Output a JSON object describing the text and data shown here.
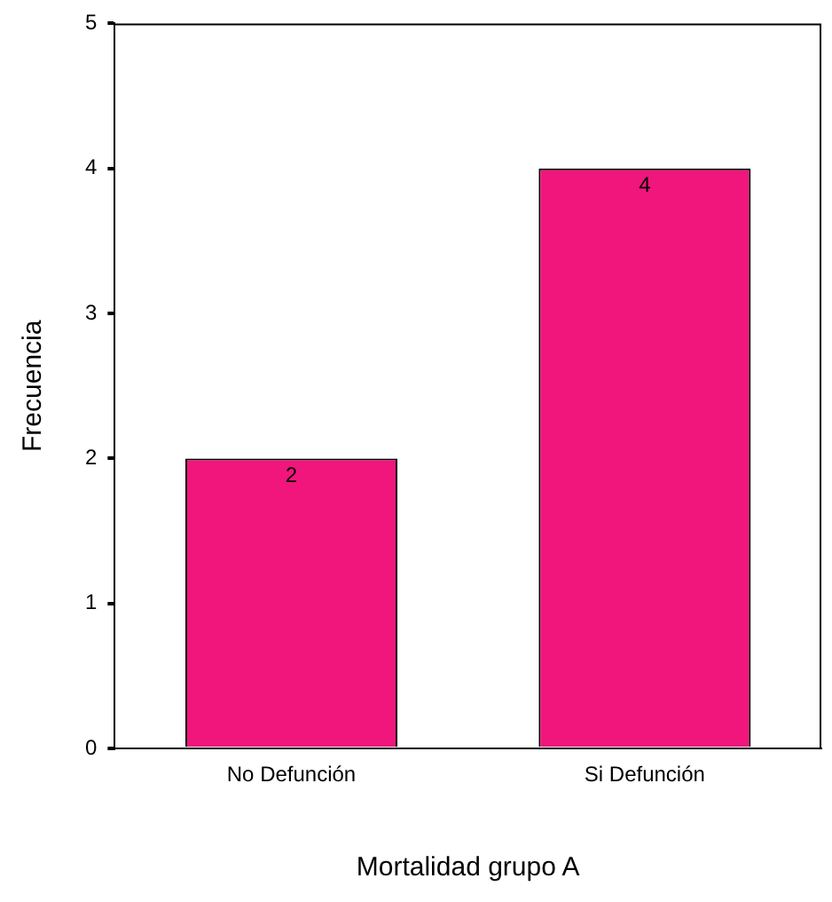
{
  "chart_data": {
    "type": "bar",
    "categories": [
      "No Defunción",
      "Si Defunción"
    ],
    "values": [
      2,
      4
    ],
    "color": "#f0167c",
    "xlabel": "Mortalidad grupo A",
    "ylabel": "Frecuencia",
    "ylim": [
      0,
      5
    ],
    "yticks": [
      0,
      1,
      2,
      3,
      4,
      5
    ],
    "grid": false,
    "legend": false,
    "data_labels": true
  }
}
